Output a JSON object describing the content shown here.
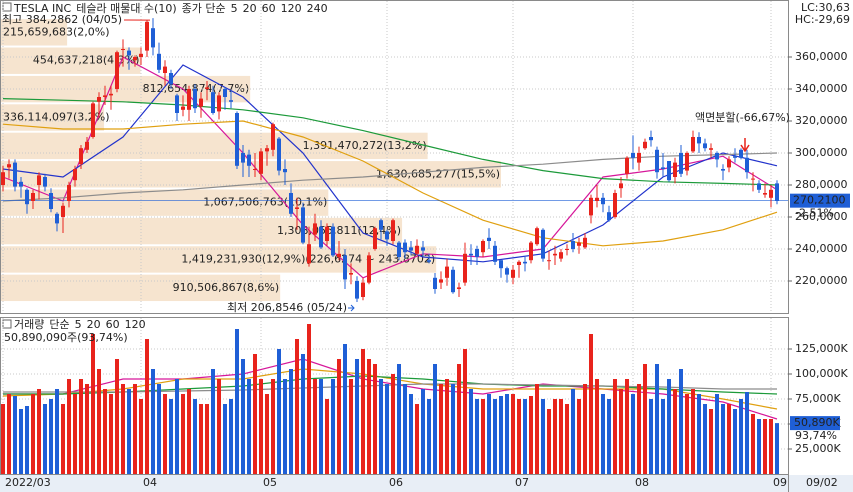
{
  "title": "TESLA INC",
  "subtitle": "테슬라 매물대 수(10)",
  "chart_data": [
    {
      "type": "candlestick",
      "legend_label": "종가 단순",
      "up_color": "#e8231c",
      "down_color": "#1f5fd6",
      "ylim": [
        200,
        395
      ],
      "yticks": [
        {
          "value": 220,
          "label": "220,0000"
        },
        {
          "value": 240,
          "label": "240,0000"
        },
        {
          "value": 260,
          "label": "260,0000"
        },
        {
          "value": 280,
          "label": "280,0000"
        },
        {
          "value": 300,
          "label": "300,0000"
        },
        {
          "value": 320,
          "label": "320,0000"
        },
        {
          "value": 340,
          "label": "340,0000"
        },
        {
          "value": 360,
          "label": "360,0000"
        }
      ],
      "xticks": [
        {
          "value": 0,
          "label": "2022/03"
        },
        {
          "value": 23,
          "label": "04"
        },
        {
          "value": 43,
          "label": "05"
        },
        {
          "value": 64,
          "label": "06"
        },
        {
          "value": 85,
          "label": "07"
        },
        {
          "value": 105,
          "label": "08"
        },
        {
          "value": 128,
          "label": "09"
        }
      ],
      "grid": true,
      "open": [
        280,
        291,
        294,
        282,
        277,
        270,
        280,
        285,
        275,
        262,
        260,
        270,
        283,
        293,
        302,
        310,
        332,
        335,
        336,
        340,
        365,
        364,
        358,
        360,
        364,
        378,
        362,
        350,
        350,
        336,
        327,
        327,
        340,
        329,
        340,
        338,
        326,
        340,
        333,
        325,
        300,
        299,
        290,
        287,
        301,
        302,
        309,
        290,
        275,
        265,
        266,
        231,
        249,
        254,
        245,
        254,
        235,
        236,
        224,
        220,
        210,
        219,
        240,
        258,
        251,
        245,
        244,
        244,
        241,
        237,
        241,
        233,
        222,
        219,
        222,
        227,
        215,
        219,
        237,
        240,
        238,
        247,
        242,
        233,
        228,
        222,
        230,
        232,
        233,
        243,
        252,
        233,
        236,
        234,
        240,
        245,
        242,
        241,
        261,
        270,
        272,
        263,
        260,
        278,
        287,
        300,
        294,
        303,
        310,
        302,
        291,
        295,
        285,
        300,
        289,
        301,
        310,
        306,
        302,
        300,
        290,
        291,
        298,
        302,
        297,
        284,
        281,
        274,
        272,
        281
      ],
      "high": [
        292,
        296,
        296,
        285,
        278,
        277,
        288,
        287,
        278,
        263,
        269,
        282,
        292,
        305,
        310,
        332,
        338,
        342,
        342,
        364,
        371,
        366,
        361,
        366,
        383,
        384.2862,
        369,
        358,
        352,
        337,
        336,
        342,
        343,
        338,
        345,
        342,
        338,
        341,
        339,
        326,
        305,
        302,
        300,
        303,
        305,
        319,
        310,
        296,
        281,
        272,
        269,
        254,
        262,
        258,
        256,
        256,
        245,
        240,
        231,
        223,
        222,
        238,
        254,
        259,
        252,
        259,
        245,
        246,
        245,
        246,
        245,
        237,
        225,
        226,
        234,
        229,
        219,
        244,
        243,
        242,
        246,
        253,
        245,
        233,
        229,
        230,
        233,
        235,
        245,
        254,
        253,
        239,
        242,
        240,
        243,
        250,
        247,
        250,
        274,
        280,
        275,
        267,
        277,
        285,
        298,
        311,
        304,
        309,
        314,
        304,
        300,
        295,
        297,
        305,
        301,
        314,
        313,
        309,
        306,
        301,
        293,
        298,
        303,
        303,
        302,
        288,
        283,
        281,
        280,
        283
      ],
      "low": [
        276,
        284,
        276,
        272,
        262,
        265,
        271,
        276,
        263,
        251,
        250,
        266,
        279,
        290,
        300,
        309,
        322,
        330,
        327,
        338,
        354,
        352,
        354,
        355,
        360,
        361,
        350,
        342,
        340,
        320,
        323,
        320,
        325,
        322,
        333,
        324,
        321,
        327,
        328,
        290,
        285,
        285,
        285,
        283,
        292,
        298,
        286,
        280,
        260,
        252,
        243,
        229,
        245,
        240,
        242,
        235,
        233,
        215,
        218,
        206.8546,
        208,
        218,
        239,
        246,
        242,
        243,
        233,
        234,
        236,
        236,
        235,
        231,
        212,
        215,
        217,
        212,
        210,
        217,
        230,
        230,
        235,
        240,
        230,
        222,
        219,
        218,
        222,
        226,
        231,
        242,
        232,
        227,
        230,
        232,
        236,
        238,
        237,
        240,
        256,
        266,
        263,
        257,
        259,
        272,
        284,
        290,
        289,
        302,
        304,
        284,
        285,
        282,
        281,
        285,
        286,
        300,
        300,
        301,
        297,
        291,
        283,
        288,
        294,
        296,
        284,
        276,
        275,
        272,
        266,
        268
      ],
      "close": [
        288,
        293,
        279,
        279,
        268,
        275,
        286,
        279,
        265,
        256,
        267,
        280,
        290,
        303,
        307,
        331,
        335,
        336,
        337,
        363,
        365,
        361,
        360,
        362,
        382,
        366,
        352,
        354,
        343,
        325,
        329,
        340,
        328,
        334,
        341,
        325,
        336,
        335,
        332,
        292,
        294,
        292,
        290,
        301,
        303,
        318,
        289,
        288,
        262,
        266,
        244,
        243,
        256,
        241,
        254,
        236,
        237,
        221,
        225,
        209,
        219,
        236,
        253,
        252,
        246,
        258,
        235,
        238,
        239,
        242,
        239,
        232,
        215,
        221,
        229,
        213,
        216,
        237,
        236,
        235,
        245,
        245,
        232,
        228,
        224,
        227,
        232,
        231,
        244,
        253,
        234,
        233,
        237,
        238,
        240,
        240,
        244,
        247,
        272,
        272,
        268,
        258,
        275,
        281,
        297,
        297,
        300,
        307,
        308,
        288,
        290,
        283,
        294,
        287,
        300,
        310,
        306,
        303,
        303,
        296,
        289,
        296,
        297,
        297,
        288,
        284,
        277,
        275,
        277,
        270.21
      ],
      "ma": [
        {
          "name": "5",
          "color": "#d6179a",
          "x": [
            0,
            10,
            20,
            30,
            40,
            50,
            60,
            70,
            80,
            90,
            100,
            110,
            120,
            129
          ],
          "values": [
            285,
            270,
            360,
            340,
            300,
            255,
            222,
            237,
            235,
            240,
            285,
            290,
            298,
            277
          ]
        },
        {
          "name": "20",
          "color": "#2233cc",
          "x": [
            0,
            10,
            20,
            30,
            40,
            50,
            60,
            70,
            80,
            90,
            100,
            110,
            120,
            129
          ],
          "values": [
            290,
            285,
            310,
            355,
            335,
            300,
            250,
            235,
            232,
            237,
            255,
            285,
            300,
            292
          ]
        },
        {
          "name": "60",
          "color": "#e0a010",
          "x": [
            0,
            10,
            20,
            30,
            40,
            50,
            60,
            70,
            80,
            90,
            100,
            110,
            120,
            129
          ],
          "values": [
            318,
            315,
            315,
            318,
            320,
            310,
            295,
            275,
            258,
            247,
            242,
            245,
            252,
            263
          ]
        },
        {
          "name": "120",
          "color": "#1c9a3a",
          "x": [
            0,
            10,
            20,
            30,
            40,
            50,
            60,
            70,
            80,
            90,
            100,
            110,
            120,
            129
          ],
          "values": [
            334,
            333,
            332,
            330,
            327,
            322,
            314,
            305,
            296,
            289,
            284,
            282,
            281,
            280
          ]
        },
        {
          "name": "240",
          "color": "#8c8c8c",
          "x": [
            0,
            10,
            20,
            30,
            40,
            50,
            60,
            70,
            80,
            90,
            100,
            110,
            120,
            129
          ],
          "values": [
            270,
            272,
            275,
            277,
            280,
            283,
            285,
            288,
            291,
            293,
            296,
            298,
            299,
            300
          ]
        }
      ],
      "bands": [
        206.85,
        224.6,
        242.34,
        260.08,
        277.83,
        295.57,
        313.31,
        331.06,
        348.8,
        366.54,
        384.29
      ],
      "profile": [
        910506867,
        1419231930,
        1308055811,
        1067506763,
        1630685277,
        1391470272,
        336114097,
        812654874,
        454637218,
        215659683
      ],
      "profile_labels": [
        "910,506,867(8,6%)",
        "1,419,231,930(12,9%)(226,6274 ~ 243,8702)",
        "1,308,055,811(12,4%)",
        "1,067,506,763(10,1%)",
        "1,630,685,277(15,5%)",
        "1,391,470,272(13,2%)",
        "336,114,097(3,2%)",
        "812,654,874(7,7%)",
        "454,637,218(4,3%)",
        "215,659,683(2,0%)"
      ],
      "profile_color": "#f6e4cf",
      "annotations": {
        "high": "최고 384,2862 (04/05)",
        "low": "최저 206,8546 (05/24)",
        "split": "액면분할(-66,67%)"
      },
      "last_price_label": "270,2100",
      "change_label": "-2,51%",
      "lc_label": "LC:30,63",
      "hc_label": "HC:-29,69"
    },
    {
      "type": "volume_bar",
      "title": "거래량",
      "legend_label": "단순",
      "ylim": [
        0,
        156000
      ],
      "yticks": [
        {
          "value": 25000,
          "label": "25,000K"
        },
        {
          "value": 50000,
          "label": "50,000K"
        },
        {
          "value": 75000,
          "label": "75,000K"
        },
        {
          "value": 100000,
          "label": "100,000K"
        },
        {
          "value": 125000,
          "label": "125,000K"
        }
      ],
      "values": [
        70000,
        80000,
        78000,
        65000,
        68000,
        80000,
        85000,
        70000,
        75000,
        85000,
        70000,
        95000,
        80000,
        95000,
        90000,
        140000,
        105000,
        85000,
        80000,
        115000,
        90000,
        85000,
        90000,
        75000,
        135000,
        105000,
        90000,
        80000,
        75000,
        95000,
        80000,
        85000,
        75000,
        70000,
        70000,
        105000,
        95000,
        70000,
        75000,
        145000,
        115000,
        95000,
        120000,
        95000,
        80000,
        95000,
        125000,
        95000,
        105000,
        135000,
        120000,
        150000,
        95000,
        95000,
        75000,
        95000,
        115000,
        130000,
        95000,
        115000,
        125000,
        115000,
        110000,
        95000,
        90000,
        100000,
        110000,
        90000,
        80000,
        70000,
        85000,
        75000,
        110000,
        90000,
        95000,
        90000,
        110000,
        125000,
        85000,
        75000,
        75000,
        80000,
        75000,
        78000,
        80000,
        80000,
        75000,
        75000,
        78000,
        90000,
        75000,
        65000,
        75000,
        75000,
        70000,
        85000,
        75000,
        90000,
        140000,
        95000,
        80000,
        75000,
        95000,
        85000,
        95000,
        80000,
        90000,
        110000,
        75000,
        110000,
        75000,
        95000,
        85000,
        105000,
        80000,
        85000,
        80000,
        70000,
        65000,
        80000,
        70000,
        70000,
        65000,
        75000,
        82000,
        60000,
        55000,
        55000,
        55000,
        50890
      ],
      "ma": [
        {
          "name": "5",
          "color": "#d6179a",
          "x": [
            0,
            10,
            20,
            30,
            40,
            50,
            60,
            70,
            80,
            90,
            100,
            110,
            120,
            129
          ],
          "values": [
            80000,
            80000,
            95000,
            95000,
            100000,
            115000,
            95000,
            85000,
            80000,
            90000,
            85000,
            80000,
            72000,
            55000
          ]
        },
        {
          "name": "20",
          "color": "#e0a010",
          "x": [
            0,
            10,
            20,
            30,
            40,
            50,
            60,
            70,
            80,
            90,
            100,
            110,
            120,
            129
          ],
          "values": [
            78000,
            80000,
            85000,
            95000,
            95000,
            105000,
            100000,
            90000,
            85000,
            85000,
            85000,
            85000,
            75000,
            65000
          ]
        },
        {
          "name": "60",
          "color": "#1c9a3a",
          "x": [
            0,
            10,
            20,
            30,
            40,
            50,
            60,
            70,
            80,
            90,
            100,
            110,
            120,
            129
          ],
          "values": [
            80000,
            80000,
            82000,
            85000,
            88000,
            95000,
            98000,
            95000,
            90000,
            88000,
            88000,
            85000,
            82000,
            80000
          ]
        },
        {
          "name": "120",
          "color": "#8c8c8c",
          "x": [
            0,
            10,
            20,
            30,
            40,
            50,
            60,
            70,
            80,
            90,
            100,
            110,
            120,
            129
          ],
          "values": [
            82000,
            82000,
            82000,
            83000,
            84000,
            86000,
            88000,
            90000,
            90000,
            89000,
            88000,
            87000,
            85000,
            85000
          ]
        }
      ],
      "info": "50,890,090주(93,74%)",
      "last_label": "50,890K",
      "ratio_label": "93,74%",
      "end_label": "09/02"
    }
  ]
}
